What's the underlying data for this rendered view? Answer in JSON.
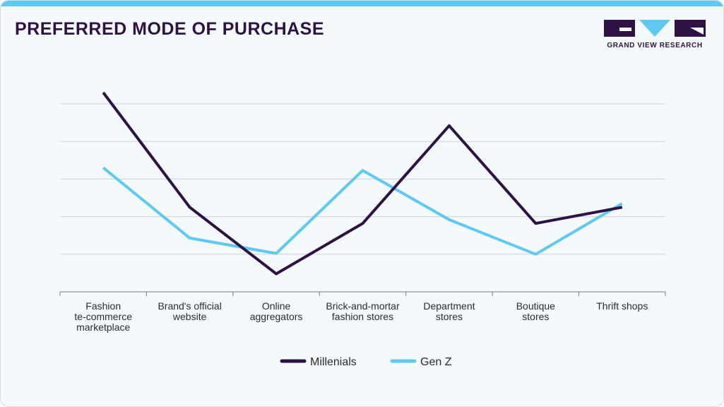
{
  "header": {
    "title": "PREFERRED MODE OF PURCHASE"
  },
  "logo": {
    "text": "GRAND VIEW RESEARCH",
    "colors": {
      "dark": "#2f1245",
      "light": "#5ecaf3"
    }
  },
  "chart_data": {
    "type": "line",
    "title": "PREFERRED MODE OF PURCHASE",
    "xlabel": "",
    "ylabel": "",
    "ylim": [
      0,
      50
    ],
    "grid": true,
    "legend": "bottom-center",
    "categories": [
      [
        "Fashion",
        "te-commerce",
        "marketplace"
      ],
      [
        "Brand's official",
        "website"
      ],
      [
        "Online",
        "aggregators"
      ],
      [
        "Brick-and-mortar",
        "fashion stores"
      ],
      [
        "Department",
        "stores"
      ],
      [
        "Boutique",
        "stores"
      ],
      [
        "Thrift shops"
      ]
    ],
    "series": [
      {
        "name": "Millenials",
        "color": "#2f1245",
        "values": [
          53,
          22.5,
          4.8,
          18.2,
          44.2,
          18.2,
          22.5
        ]
      },
      {
        "name": "Gen Z",
        "color": "#5ecaf3",
        "values": [
          33,
          14.3,
          10.2,
          32.3,
          19.2,
          10,
          23.5
        ]
      }
    ]
  }
}
